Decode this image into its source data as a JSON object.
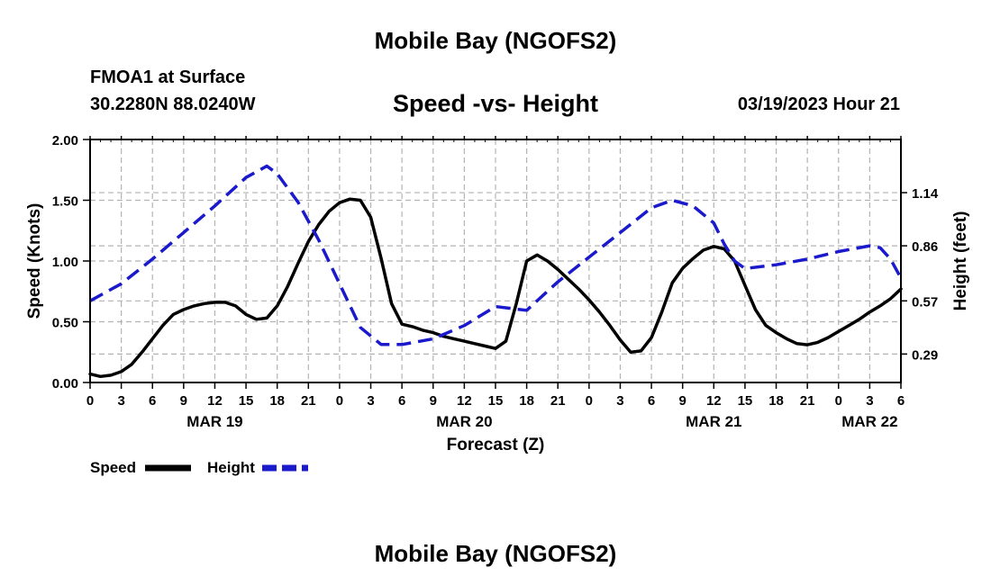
{
  "header": {
    "title": "Mobile Bay (NGOFS2)",
    "station": "FMOA1 at Surface",
    "coords": "30.2280N  88.0240W",
    "subtitle": "Speed -vs- Height",
    "datetime": "03/19/2023 Hour 21"
  },
  "footer": {
    "title": "Mobile Bay (NGOFS2)"
  },
  "chart_data": {
    "type": "line",
    "title": "Speed -vs- Height",
    "xlabel": "Forecast (Z)",
    "ylabel": "Speed (Knots)",
    "y2label": "Height (feet)",
    "x_unit": "hours since MAR 19 00Z",
    "xlim": [
      0,
      78
    ],
    "ylim": [
      0,
      2.0
    ],
    "y2lim": [
      0.14,
      1.42
    ],
    "x_ticks": [
      0,
      3,
      6,
      9,
      12,
      15,
      18,
      21,
      24,
      27,
      30,
      33,
      36,
      39,
      42,
      45,
      48,
      51,
      54,
      57,
      60,
      63,
      66,
      69,
      72,
      75,
      78
    ],
    "x_tick_labels": [
      "0",
      "3",
      "6",
      "9",
      "12",
      "15",
      "18",
      "21",
      "0",
      "3",
      "6",
      "9",
      "12",
      "15",
      "18",
      "21",
      "0",
      "3",
      "6",
      "9",
      "12",
      "15",
      "18",
      "21",
      "0",
      "3",
      "6"
    ],
    "date_labels": [
      {
        "x": 12,
        "label": "MAR 19"
      },
      {
        "x": 36,
        "label": "MAR 20"
      },
      {
        "x": 60,
        "label": "MAR 21"
      },
      {
        "x": 75,
        "label": "MAR 22"
      }
    ],
    "y_ticks": [
      0,
      0.5,
      1.0,
      1.5,
      2.0
    ],
    "y_tick_labels": [
      "0.00",
      "0.50",
      "1.00",
      "1.50",
      "2.00"
    ],
    "y2_ticks": [
      0.29,
      0.57,
      0.86,
      1.14
    ],
    "y2_tick_labels": [
      "0.29",
      "0.57",
      "0.86",
      "1.14"
    ],
    "legend_position": "bottom-left",
    "series": [
      {
        "name": "Speed",
        "axis": "left",
        "color": "#000000",
        "dash": "solid",
        "points": [
          [
            0,
            0.07
          ],
          [
            1,
            0.05
          ],
          [
            2,
            0.06
          ],
          [
            3,
            0.09
          ],
          [
            4,
            0.15
          ],
          [
            5,
            0.25
          ],
          [
            6,
            0.36
          ],
          [
            7,
            0.47
          ],
          [
            8,
            0.56
          ],
          [
            9,
            0.6
          ],
          [
            10,
            0.63
          ],
          [
            11,
            0.65
          ],
          [
            12,
            0.66
          ],
          [
            13,
            0.66
          ],
          [
            14,
            0.63
          ],
          [
            15,
            0.56
          ],
          [
            16,
            0.52
          ],
          [
            17,
            0.53
          ],
          [
            18,
            0.63
          ],
          [
            19,
            0.79
          ],
          [
            20,
            0.98
          ],
          [
            21,
            1.16
          ],
          [
            22,
            1.3
          ],
          [
            23,
            1.41
          ],
          [
            24,
            1.48
          ],
          [
            25,
            1.51
          ],
          [
            26,
            1.5
          ],
          [
            27,
            1.36
          ],
          [
            28,
            1.02
          ],
          [
            29,
            0.65
          ],
          [
            30,
            0.48
          ],
          [
            31,
            0.46
          ],
          [
            32,
            0.43
          ],
          [
            33,
            0.41
          ],
          [
            34,
            0.38
          ],
          [
            35,
            0.36
          ],
          [
            36,
            0.34
          ],
          [
            37,
            0.32
          ],
          [
            38,
            0.3
          ],
          [
            39,
            0.28
          ],
          [
            40,
            0.34
          ],
          [
            41,
            0.65
          ],
          [
            42,
            1.0
          ],
          [
            43,
            1.05
          ],
          [
            44,
            1.0
          ],
          [
            45,
            0.93
          ],
          [
            46,
            0.85
          ],
          [
            47,
            0.77
          ],
          [
            48,
            0.68
          ],
          [
            49,
            0.58
          ],
          [
            50,
            0.47
          ],
          [
            51,
            0.35
          ],
          [
            52,
            0.25
          ],
          [
            53,
            0.26
          ],
          [
            54,
            0.37
          ],
          [
            55,
            0.58
          ],
          [
            56,
            0.82
          ],
          [
            57,
            0.94
          ],
          [
            58,
            1.02
          ],
          [
            59,
            1.09
          ],
          [
            60,
            1.12
          ],
          [
            61,
            1.1
          ],
          [
            62,
            1.0
          ],
          [
            63,
            0.8
          ],
          [
            64,
            0.6
          ],
          [
            65,
            0.47
          ],
          [
            66,
            0.41
          ],
          [
            67,
            0.36
          ],
          [
            68,
            0.32
          ],
          [
            69,
            0.31
          ],
          [
            70,
            0.33
          ],
          [
            71,
            0.37
          ],
          [
            72,
            0.42
          ],
          [
            73,
            0.47
          ],
          [
            74,
            0.52
          ],
          [
            75,
            0.58
          ],
          [
            76,
            0.63
          ],
          [
            77,
            0.69
          ],
          [
            78,
            0.77
          ]
        ]
      },
      {
        "name": "Height",
        "axis": "right",
        "color": "#1a1acc",
        "dash": "dashed",
        "points": [
          [
            0,
            0.57
          ],
          [
            3,
            0.66
          ],
          [
            6,
            0.79
          ],
          [
            9,
            0.93
          ],
          [
            12,
            1.07
          ],
          [
            15,
            1.22
          ],
          [
            17,
            1.28
          ],
          [
            18,
            1.24
          ],
          [
            20,
            1.09
          ],
          [
            22,
            0.89
          ],
          [
            24,
            0.66
          ],
          [
            26,
            0.43
          ],
          [
            28,
            0.34
          ],
          [
            30,
            0.34
          ],
          [
            33,
            0.37
          ],
          [
            36,
            0.44
          ],
          [
            39,
            0.54
          ],
          [
            42,
            0.52
          ],
          [
            45,
            0.67
          ],
          [
            48,
            0.8
          ],
          [
            51,
            0.93
          ],
          [
            54,
            1.06
          ],
          [
            56,
            1.1
          ],
          [
            58,
            1.07
          ],
          [
            60,
            0.98
          ],
          [
            61,
            0.87
          ],
          [
            62,
            0.78
          ],
          [
            63,
            0.74
          ],
          [
            66,
            0.76
          ],
          [
            69,
            0.79
          ],
          [
            72,
            0.83
          ],
          [
            75,
            0.86
          ],
          [
            76,
            0.85
          ],
          [
            77,
            0.79
          ],
          [
            78,
            0.69
          ]
        ]
      }
    ]
  }
}
